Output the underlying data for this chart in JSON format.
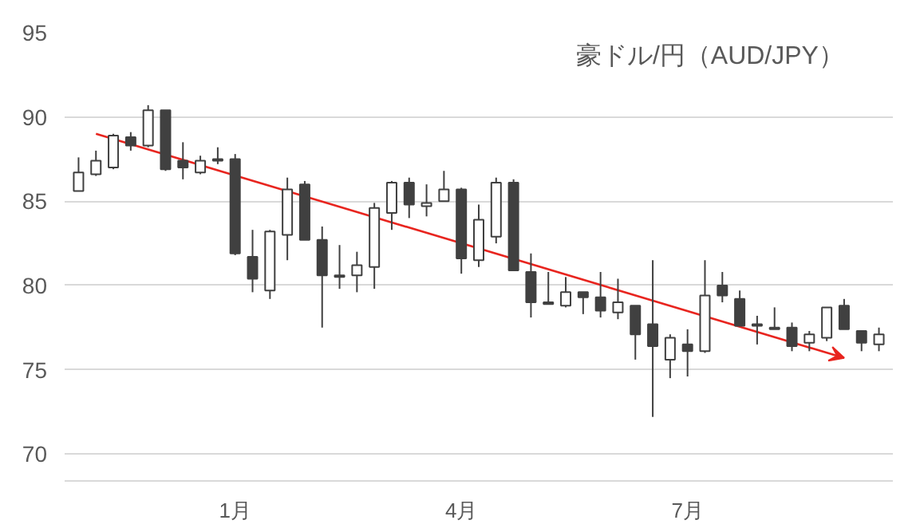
{
  "chart_data": {
    "type": "candlestick",
    "title": "豪ドル/円（AUD/JPY）",
    "color": "#404040",
    "categories": [
      null,
      null,
      null,
      null,
      null,
      null,
      null,
      null,
      null,
      "1月",
      null,
      null,
      null,
      null,
      null,
      null,
      null,
      null,
      null,
      null,
      null,
      null,
      "4月",
      null,
      null,
      null,
      null,
      null,
      null,
      null,
      null,
      null,
      null,
      null,
      null,
      "7月",
      null,
      null,
      null,
      null,
      null,
      null,
      null,
      null,
      null,
      null,
      null
    ],
    "ohlc": [
      [
        85.6,
        87.6,
        85.6,
        86.7
      ],
      [
        86.6,
        88.0,
        86.5,
        87.4
      ],
      [
        87.0,
        89.0,
        86.9,
        88.9
      ],
      [
        88.8,
        89.1,
        88.0,
        88.3
      ],
      [
        88.3,
        90.7,
        88.2,
        90.4
      ],
      [
        90.4,
        90.4,
        86.8,
        86.9
      ],
      [
        87.4,
        88.5,
        86.3,
        87.0
      ],
      [
        86.7,
        87.7,
        86.6,
        87.4
      ],
      [
        87.5,
        88.2,
        87.2,
        87.4
      ],
      [
        87.5,
        87.8,
        81.8,
        81.9
      ],
      [
        81.7,
        83.3,
        79.6,
        80.4
      ],
      [
        79.7,
        83.3,
        79.2,
        83.2
      ],
      [
        83.0,
        86.4,
        81.5,
        85.7
      ],
      [
        86.0,
        86.2,
        82.7,
        82.7
      ],
      [
        82.7,
        83.5,
        77.5,
        80.6
      ],
      [
        80.6,
        82.4,
        79.8,
        80.5
      ],
      [
        80.6,
        82.0,
        79.6,
        81.2
      ],
      [
        81.1,
        84.9,
        79.8,
        84.6
      ],
      [
        84.3,
        86.2,
        83.3,
        86.1
      ],
      [
        86.1,
        86.4,
        84.0,
        84.8
      ],
      [
        84.7,
        86.0,
        84.1,
        84.9
      ],
      [
        85.0,
        86.8,
        85.0,
        85.7
      ],
      [
        85.7,
        85.8,
        80.7,
        81.6
      ],
      [
        81.5,
        84.8,
        81.1,
        83.9
      ],
      [
        82.9,
        86.4,
        82.5,
        86.1
      ],
      [
        86.1,
        86.3,
        80.9,
        80.9
      ],
      [
        80.8,
        81.9,
        78.1,
        79.0
      ],
      [
        79.0,
        80.8,
        78.9,
        78.9
      ],
      [
        78.8,
        80.5,
        78.7,
        79.6
      ],
      [
        79.6,
        79.6,
        78.3,
        79.3
      ],
      [
        79.3,
        80.8,
        78.1,
        78.5
      ],
      [
        78.4,
        80.4,
        78.0,
        79.0
      ],
      [
        78.8,
        78.8,
        75.6,
        77.1
      ],
      [
        77.7,
        81.5,
        72.2,
        76.4
      ],
      [
        75.6,
        77.1,
        74.5,
        76.9
      ],
      [
        76.5,
        77.4,
        74.6,
        76.1
      ],
      [
        76.1,
        81.5,
        76.0,
        79.4
      ],
      [
        80.0,
        80.8,
        79.0,
        79.4
      ],
      [
        79.2,
        79.7,
        77.6,
        77.6
      ],
      [
        77.7,
        78.2,
        76.5,
        77.6
      ],
      [
        77.5,
        78.7,
        77.4,
        77.4
      ],
      [
        77.5,
        77.8,
        76.1,
        76.4
      ],
      [
        76.6,
        77.3,
        76.1,
        77.1
      ],
      [
        76.9,
        78.7,
        76.7,
        78.7
      ],
      [
        78.8,
        79.2,
        77.4,
        77.4
      ],
      [
        77.3,
        77.3,
        76.1,
        76.6
      ],
      [
        76.5,
        77.5,
        76.1,
        77.1
      ]
    ],
    "series": [
      {
        "type": "line",
        "color": "#e8251f",
        "values": [
          null,
          89.0,
          null,
          null,
          null,
          null,
          null,
          null,
          null,
          null,
          null,
          null,
          null,
          null,
          null,
          null,
          null,
          null,
          null,
          null,
          null,
          null,
          null,
          null,
          null,
          null,
          null,
          null,
          null,
          null,
          null,
          null,
          null,
          null,
          null,
          null,
          null,
          null,
          null,
          null,
          null,
          null,
          null,
          null,
          75.7,
          null,
          null
        ]
      }
    ],
    "ylim": [
      68.4,
      95
    ],
    "yticks": [
      70,
      75,
      80,
      85,
      90,
      95
    ],
    "grid": "y"
  }
}
